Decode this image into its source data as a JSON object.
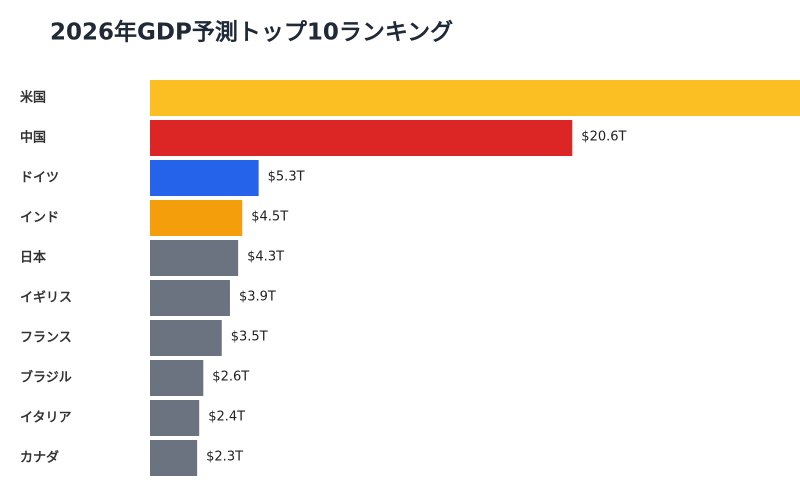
{
  "chart_data": {
    "type": "bar",
    "orientation": "horizontal",
    "title": "2026年GDP予測トップ10ランキング",
    "categories": [
      "米国",
      "中国",
      "ドイツ",
      "インド",
      "日本",
      "イギリス",
      "フランス",
      "ブラジル",
      "イタリア",
      "カナダ"
    ],
    "values": [
      31.8,
      20.6,
      5.3,
      4.5,
      4.3,
      3.9,
      3.5,
      2.6,
      2.4,
      2.3
    ],
    "value_labels": [
      null,
      "$20.6T",
      "$5.3T",
      "$4.5T",
      "$4.3T",
      "$3.9T",
      "$3.5T",
      "$2.6T",
      "$2.4T",
      "$2.3T"
    ],
    "colors": [
      "#fbbf24",
      "#dc2626",
      "#2563eb",
      "#f59e0b",
      "#6b7280",
      "#6b7280",
      "#6b7280",
      "#6b7280",
      "#6b7280",
      "#6b7280"
    ]
  }
}
